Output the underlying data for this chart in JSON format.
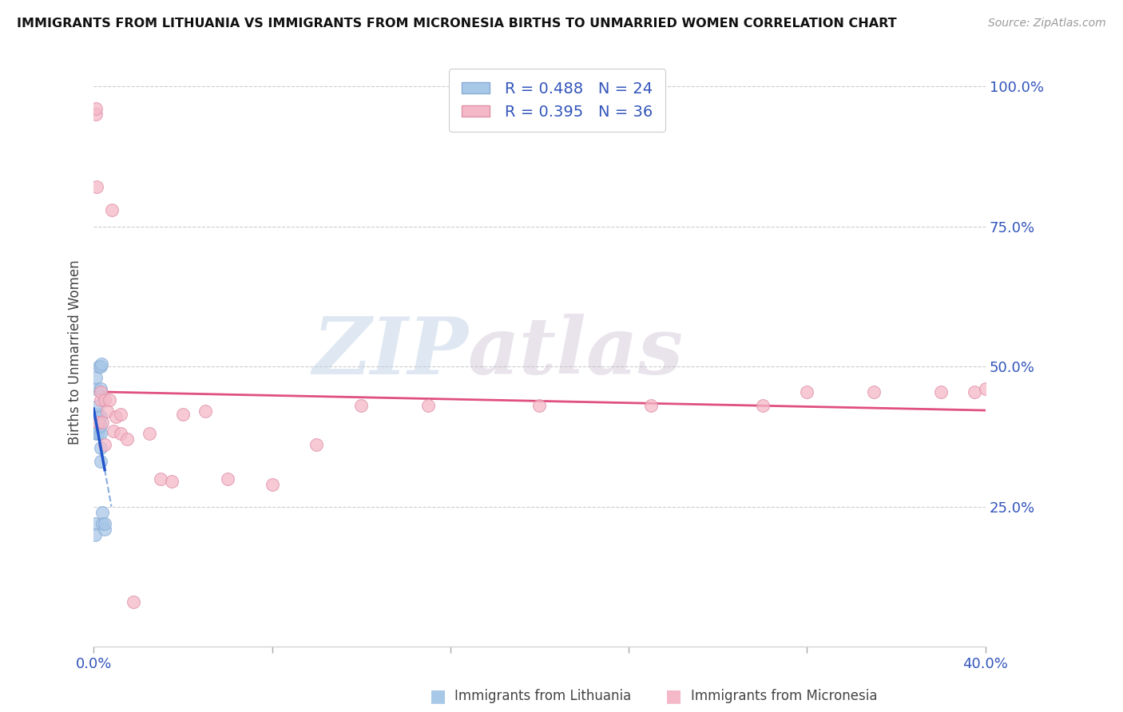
{
  "title": "IMMIGRANTS FROM LITHUANIA VS IMMIGRANTS FROM MICRONESIA BIRTHS TO UNMARRIED WOMEN CORRELATION CHART",
  "source": "Source: ZipAtlas.com",
  "ylabel": "Births to Unmarried Women",
  "watermark_zip": "ZIP",
  "watermark_atlas": "atlas",
  "legend_line1": "R = 0.488   N = 24",
  "legend_line2": "R = 0.395   N = 36",
  "legend_label1": "Immigrants from Lithuania",
  "legend_label2": "Immigrants from Micronesia",
  "lithuania_color": "#a8c8e8",
  "micronesia_color": "#f4b8c8",
  "trend_lith_solid_color": "#2255cc",
  "trend_lith_dashed_color": "#88aadd",
  "trend_mic_color": "#e05080",
  "tick_color": "#3355bb",
  "title_color": "#111111",
  "source_color": "#999999",
  "grid_color": "#cccccc",
  "background": "#ffffff",
  "lithuania_x": [
    0.0005,
    0.0008,
    0.001,
    0.001,
    0.0012,
    0.0015,
    0.0015,
    0.002,
    0.002,
    0.002,
    0.002,
    0.0025,
    0.003,
    0.003,
    0.003,
    0.003,
    0.003,
    0.003,
    0.003,
    0.0035,
    0.004,
    0.004,
    0.005,
    0.005
  ],
  "lithuania_y": [
    0.22,
    0.2,
    0.46,
    0.48,
    0.38,
    0.38,
    0.41,
    0.38,
    0.39,
    0.415,
    0.43,
    0.5,
    0.33,
    0.355,
    0.38,
    0.395,
    0.41,
    0.46,
    0.5,
    0.505,
    0.22,
    0.24,
    0.21,
    0.22
  ],
  "micronesia_x": [
    0.001,
    0.001,
    0.0015,
    0.002,
    0.003,
    0.003,
    0.004,
    0.005,
    0.005,
    0.006,
    0.007,
    0.008,
    0.009,
    0.01,
    0.012,
    0.012,
    0.015,
    0.018,
    0.025,
    0.03,
    0.035,
    0.04,
    0.05,
    0.06,
    0.08,
    0.1,
    0.12,
    0.15,
    0.2,
    0.25,
    0.3,
    0.32,
    0.35,
    0.38,
    0.395,
    0.4
  ],
  "micronesia_y": [
    0.95,
    0.96,
    0.82,
    0.4,
    0.44,
    0.455,
    0.4,
    0.36,
    0.44,
    0.42,
    0.44,
    0.78,
    0.385,
    0.41,
    0.38,
    0.415,
    0.37,
    0.08,
    0.38,
    0.3,
    0.295,
    0.415,
    0.42,
    0.3,
    0.29,
    0.36,
    0.43,
    0.43,
    0.43,
    0.43,
    0.43,
    0.455,
    0.455,
    0.455,
    0.455,
    0.46
  ],
  "xlim": [
    0.0,
    0.4
  ],
  "ylim": [
    0.0,
    1.05
  ],
  "xticks": [
    0.0,
    0.08,
    0.16,
    0.24,
    0.32,
    0.4
  ],
  "xtick_labels_show": [
    "0.0%",
    "",
    "",
    "",
    "",
    "40.0%"
  ],
  "ytick_vals": [
    0.25,
    0.5,
    0.75,
    1.0
  ],
  "ytick_labels": [
    "25.0%",
    "50.0%",
    "75.0%",
    "100.0%"
  ]
}
